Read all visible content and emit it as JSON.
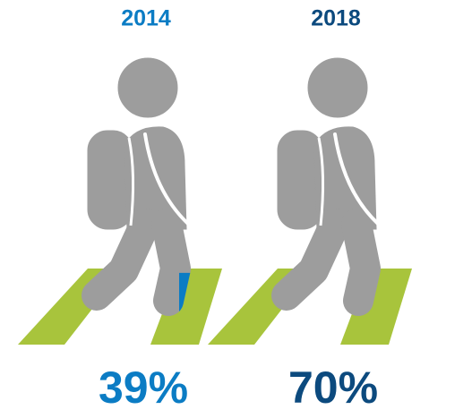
{
  "chart_data": {
    "type": "pictograph",
    "categories": [
      "2014",
      "2018"
    ],
    "values": [
      39,
      70
    ],
    "value_labels": [
      "39%",
      "70%"
    ],
    "colors": [
      "#0b7cc4",
      "#0c4a7e"
    ],
    "ylim": [
      0,
      100
    ]
  }
}
